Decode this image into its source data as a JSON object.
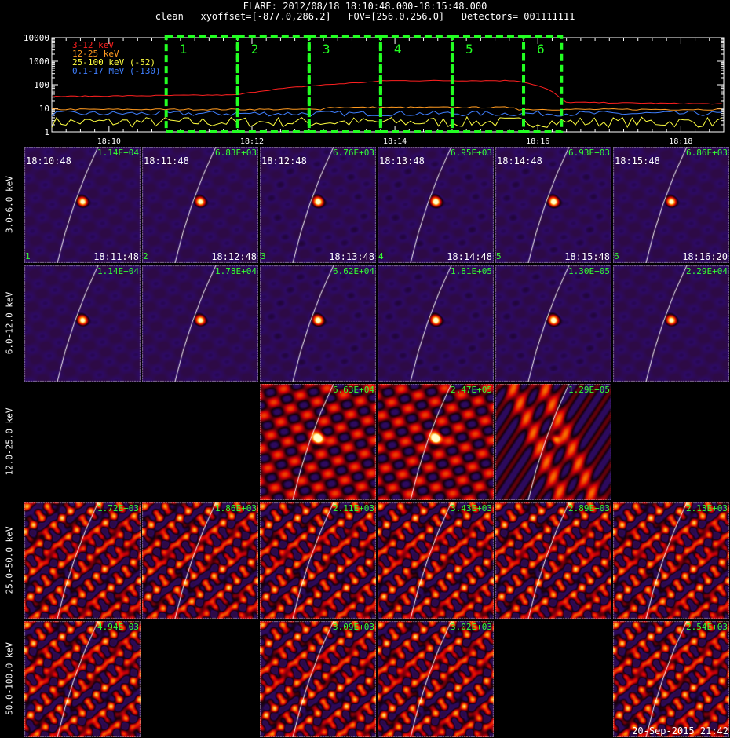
{
  "header": {
    "line1": "FLARE: 2012/08/18 18:10:48.000-18:15:48.000",
    "line2": "clean   xyoffset=[-877.0,286.2]   FOV=[256.0,256.0]   Detectors= 001111111"
  },
  "chart_data": {
    "type": "line",
    "yscale": "log",
    "ylim": [
      1,
      10000
    ],
    "y_ticks": [
      "1",
      "10",
      "100",
      "1000",
      "10000"
    ],
    "x_ticks": [
      "18:10",
      "18:12",
      "18:14",
      "18:16",
      "18:18"
    ],
    "xlim_minutes": [
      9.2,
      18.6
    ],
    "x_tick_minutes": [
      10,
      12,
      14,
      16,
      18
    ],
    "series": [
      {
        "name": "3-12 keV",
        "color": "#ff2020",
        "level": "high"
      },
      {
        "name": "12-25 keV",
        "color": "#ff9a20",
        "level": "mid"
      },
      {
        "name": "25-100 keV (-52)",
        "color": "#ffff40",
        "level": "low"
      },
      {
        "name": "0.1-17 MeV (-130)",
        "color": "#3f7fff",
        "level": "lowmid"
      }
    ],
    "intervals": [
      {
        "label": "1",
        "start_min": 10.8,
        "end_min": 11.8
      },
      {
        "label": "2",
        "start_min": 11.8,
        "end_min": 12.8
      },
      {
        "label": "3",
        "start_min": 12.8,
        "end_min": 13.8
      },
      {
        "label": "4",
        "start_min": 13.8,
        "end_min": 14.8
      },
      {
        "label": "5",
        "start_min": 14.8,
        "end_min": 15.8
      },
      {
        "label": "6",
        "start_min": 15.8,
        "end_min": 16.33
      }
    ]
  },
  "energy_bands": [
    "3.0-6.0 keV",
    "6.0-12.0 keV",
    "12.0-25.0 keV",
    "25.0-50.0 keV",
    "50.0-100.0 keV"
  ],
  "panels": [
    {
      "row": 0,
      "col": 0,
      "type": "source",
      "max": "1.14E+04",
      "start": "18:10:48",
      "end": "18:11:48",
      "num": "1"
    },
    {
      "row": 0,
      "col": 1,
      "type": "source",
      "max": "6.83E+03",
      "start": "18:11:48",
      "end": "18:12:48",
      "num": "2"
    },
    {
      "row": 0,
      "col": 2,
      "type": "ringed",
      "max": "6.76E+03",
      "start": "18:12:48",
      "end": "18:13:48",
      "num": "3"
    },
    {
      "row": 0,
      "col": 3,
      "type": "ringed",
      "max": "6.95E+03",
      "start": "18:13:48",
      "end": "18:14:48",
      "num": "4"
    },
    {
      "row": 0,
      "col": 4,
      "type": "ringed",
      "max": "6.93E+03",
      "start": "18:14:48",
      "end": "18:15:48",
      "num": "5"
    },
    {
      "row": 0,
      "col": 5,
      "type": "source",
      "max": "6.86E+03",
      "start": "18:15:48",
      "end": "18:16:20",
      "num": "6"
    },
    {
      "row": 1,
      "col": 0,
      "type": "source",
      "max": "1.14E+04"
    },
    {
      "row": 1,
      "col": 1,
      "type": "source",
      "max": "1.78E+04"
    },
    {
      "row": 1,
      "col": 2,
      "type": "ringed",
      "max": "6.62E+04"
    },
    {
      "row": 1,
      "col": 3,
      "type": "ringed",
      "max": "1.81E+05"
    },
    {
      "row": 1,
      "col": 4,
      "type": "ringed",
      "max": "1.30E+05"
    },
    {
      "row": 1,
      "col": 5,
      "type": "source",
      "max": "2.29E+04"
    },
    {
      "row": 2,
      "col": 2,
      "type": "noisysrc",
      "max": "6.63E+04"
    },
    {
      "row": 2,
      "col": 3,
      "type": "noisysrc",
      "max": "2.47E+05"
    },
    {
      "row": 2,
      "col": 4,
      "type": "streak",
      "max": "1.29E+05"
    },
    {
      "row": 3,
      "col": 0,
      "type": "noise",
      "max": "1.72E+03"
    },
    {
      "row": 3,
      "col": 1,
      "type": "noise",
      "max": "1.86E+03"
    },
    {
      "row": 3,
      "col": 2,
      "type": "noise",
      "max": "2.11E+03"
    },
    {
      "row": 3,
      "col": 3,
      "type": "noise",
      "max": "3.43E+03"
    },
    {
      "row": 3,
      "col": 4,
      "type": "noise",
      "max": "2.89E+03"
    },
    {
      "row": 3,
      "col": 5,
      "type": "noise",
      "max": "2.13E+03"
    },
    {
      "row": 4,
      "col": 0,
      "type": "noise",
      "max": "4.94E+03"
    },
    {
      "row": 4,
      "col": 2,
      "type": "noise",
      "max": "3.09E+03"
    },
    {
      "row": 4,
      "col": 3,
      "type": "noise",
      "max": "3.02E+03"
    },
    {
      "row": 4,
      "col": 5,
      "type": "noise",
      "max": "2.54E+03"
    }
  ],
  "footer": {
    "timestamp": "20-Sep-2015 21:42"
  },
  "colors": {
    "interval_box": "#22ff22",
    "max_label": "#33ff33",
    "limb": "#ffffff"
  }
}
